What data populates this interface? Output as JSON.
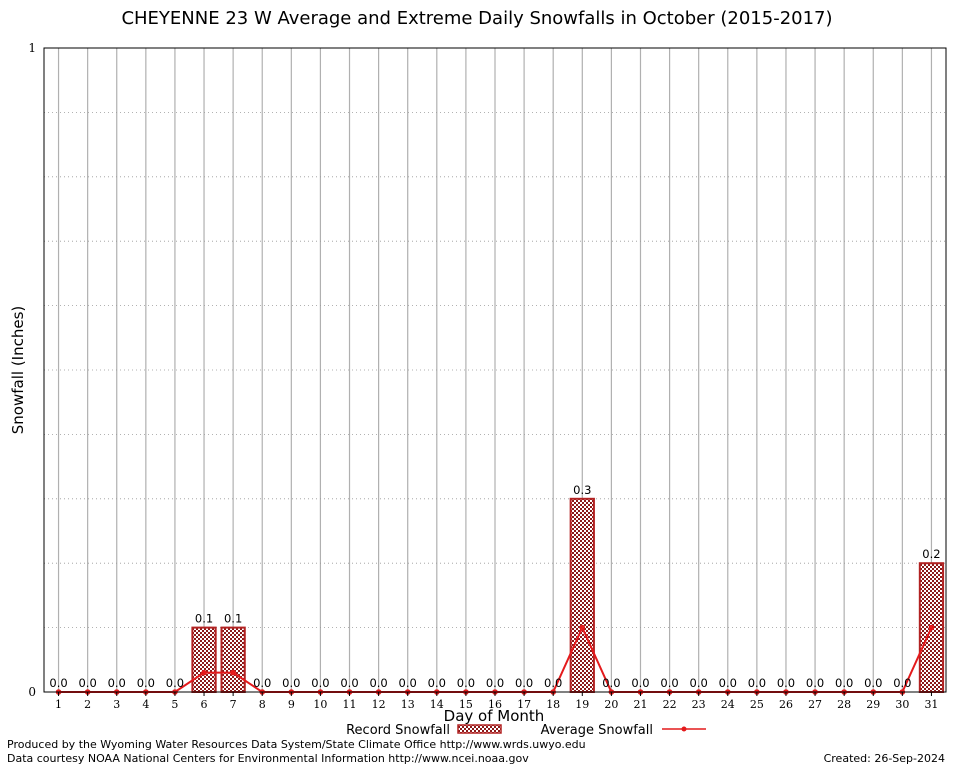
{
  "chart_data": {
    "type": "bar",
    "title": "CHEYENNE 23 W Average and Extreme Daily Snowfalls in October (2015-2017)",
    "xlabel": "Day of Month",
    "ylabel": "Snowfall (Inches)",
    "ylim": [
      0,
      1
    ],
    "y_tick_labels": [
      "0",
      "1"
    ],
    "grid": true,
    "legend_position": "bottom-center",
    "categories": [
      "1",
      "2",
      "3",
      "4",
      "5",
      "6",
      "7",
      "8",
      "9",
      "10",
      "11",
      "12",
      "13",
      "14",
      "15",
      "16",
      "17",
      "18",
      "19",
      "20",
      "21",
      "22",
      "23",
      "24",
      "25",
      "26",
      "27",
      "28",
      "29",
      "30",
      "31"
    ],
    "series": [
      {
        "name": "Record Snowfall",
        "type": "bar",
        "color": "#b22222",
        "values": [
          0,
          0,
          0,
          0,
          0,
          0.1,
          0.1,
          0,
          0,
          0,
          0,
          0,
          0,
          0,
          0,
          0,
          0,
          0,
          0.3,
          0,
          0,
          0,
          0,
          0,
          0,
          0,
          0,
          0,
          0,
          0,
          0.2
        ],
        "labels": [
          "0.0",
          "0.0",
          "0.0",
          "0.0",
          "0.0",
          "0.1",
          "0.1",
          "0.0",
          "0.0",
          "0.0",
          "0.0",
          "0.0",
          "0.0",
          "0.0",
          "0.0",
          "0.0",
          "0.0",
          "0.0",
          "0.3",
          "0.0",
          "0.0",
          "0.0",
          "0.0",
          "0.0",
          "0.0",
          "0.0",
          "0.0",
          "0.0",
          "0.0",
          "0.0",
          "0.2"
        ]
      },
      {
        "name": "Average Snowfall",
        "type": "line",
        "color": "#e41a1c",
        "values": [
          0,
          0,
          0,
          0,
          0,
          0.03,
          0.03,
          0,
          0,
          0,
          0,
          0,
          0,
          0,
          0,
          0,
          0,
          0,
          0.1,
          0,
          0,
          0,
          0,
          0,
          0,
          0,
          0,
          0,
          0,
          0,
          0.1
        ]
      }
    ]
  },
  "footer": {
    "line1": "Produced by the Wyoming Water Resources Data System/State Climate Office http://www.wrds.uwyo.edu",
    "line2": "Data courtesy NOAA National Centers for Environmental Information http://www.ncei.noaa.gov",
    "created": "Created:  26-Sep-2024"
  }
}
